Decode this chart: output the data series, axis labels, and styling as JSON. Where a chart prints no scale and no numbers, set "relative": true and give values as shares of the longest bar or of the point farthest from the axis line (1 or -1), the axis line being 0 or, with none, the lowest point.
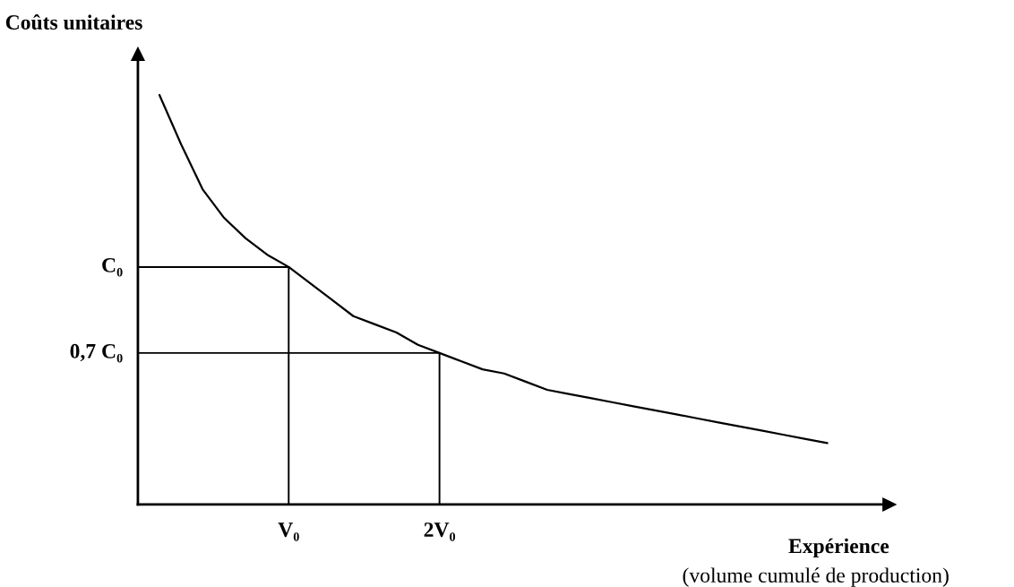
{
  "chart_data": {
    "type": "line",
    "relative": true,
    "ylabel": "Coûts unitaires",
    "xlabel": "Expérience",
    "annotations": [
      "(volume cumulé de production)"
    ],
    "categories": [
      null,
      null,
      null,
      null,
      null,
      null,
      null,
      "V₀",
      null,
      null,
      null,
      null,
      null,
      null,
      "2V₀",
      null,
      null,
      null,
      null,
      null,
      null,
      null,
      null,
      null,
      null,
      null,
      null,
      null,
      null,
      null,
      null,
      null,
      null
    ],
    "series": [
      {
        "color": "#000000",
        "values": [
          null,
          1.0,
          0.88,
          0.77,
          0.7,
          0.65,
          0.61,
          0.58,
          0.54,
          0.5,
          0.46,
          0.44,
          0.42,
          0.39,
          0.37,
          0.35,
          0.33,
          0.32,
          0.3,
          0.28,
          0.27,
          0.26,
          0.25,
          0.24,
          0.23,
          0.22,
          0.21,
          0.2,
          0.19,
          0.18,
          0.17,
          0.16,
          0.15
        ]
      }
    ],
    "ref_lines": [
      {
        "axis": "y",
        "value": 0.58,
        "label": "C₀",
        "color": "#000000"
      },
      {
        "axis": "y",
        "value": 0.37,
        "label": "0,7 C₀",
        "color": "#000000"
      },
      {
        "axis": "x",
        "value": "V₀",
        "color": "#000000"
      },
      {
        "axis": "x",
        "value": "2V₀",
        "color": "#000000"
      }
    ],
    "marker": "none",
    "line_style": "solid"
  }
}
